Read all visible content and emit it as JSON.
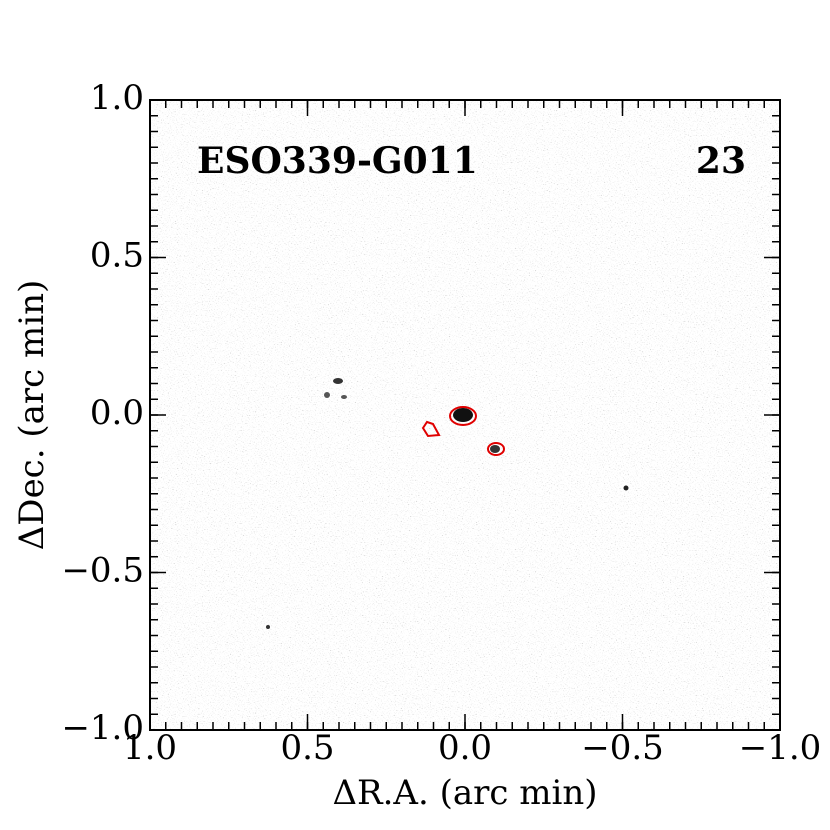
{
  "chart_data": {
    "type": "image",
    "title": "ESO339-G011",
    "annotation": "23",
    "xlabel": "ΔR.A. (arc min)",
    "ylabel": "ΔDec. (arc min)",
    "xlim": [
      1.0,
      -1.0
    ],
    "ylim": [
      -1.0,
      1.0
    ],
    "xticks": [
      {
        "value": 1.0,
        "label": "1.0"
      },
      {
        "value": 0.5,
        "label": "0.5"
      },
      {
        "value": 0.0,
        "label": "0.0"
      },
      {
        "value": -0.5,
        "label": "−0.5"
      },
      {
        "value": -1.0,
        "label": "−1.0"
      }
    ],
    "yticks": [
      {
        "value": -1.0,
        "label": "−1.0"
      },
      {
        "value": -0.5,
        "label": "−0.5"
      },
      {
        "value": 0.0,
        "label": "0.0"
      },
      {
        "value": 0.5,
        "label": "0.5"
      },
      {
        "value": 1.0,
        "label": "1.0"
      }
    ],
    "contour_color": "#e00000"
  }
}
